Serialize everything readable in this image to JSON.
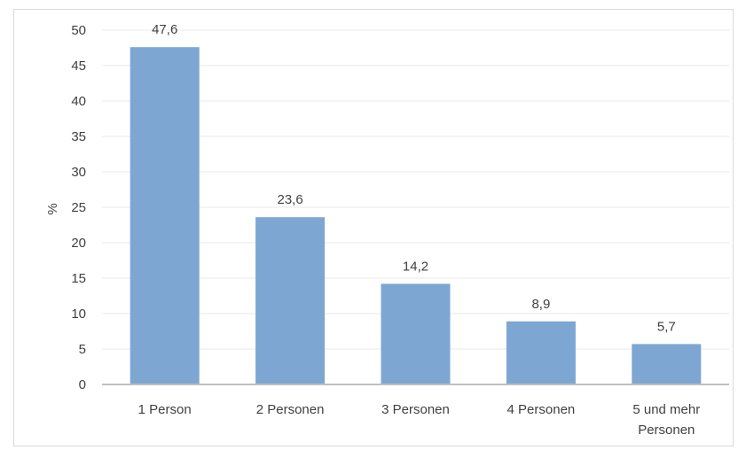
{
  "chart_data": {
    "type": "bar",
    "categories": [
      "1 Person",
      "2 Personen",
      "3 Personen",
      "4 Personen",
      "5 und mehr Personen"
    ],
    "category_lines": [
      [
        "1 Person"
      ],
      [
        "2 Personen"
      ],
      [
        "3 Personen"
      ],
      [
        "4 Personen"
      ],
      [
        "5 und mehr",
        "Personen"
      ]
    ],
    "values": [
      47.6,
      23.6,
      14.2,
      8.9,
      5.7
    ],
    "value_labels": [
      "47,6",
      "23,6",
      "14,2",
      "8,9",
      "5,7"
    ],
    "title": "",
    "xlabel": "",
    "ylabel": "%",
    "ylim": [
      0,
      50
    ],
    "yticks": [
      0,
      5,
      10,
      15,
      20,
      25,
      30,
      35,
      40,
      45,
      50
    ],
    "grid": true,
    "legend": "none",
    "bar_color": "#7ea6d3"
  }
}
